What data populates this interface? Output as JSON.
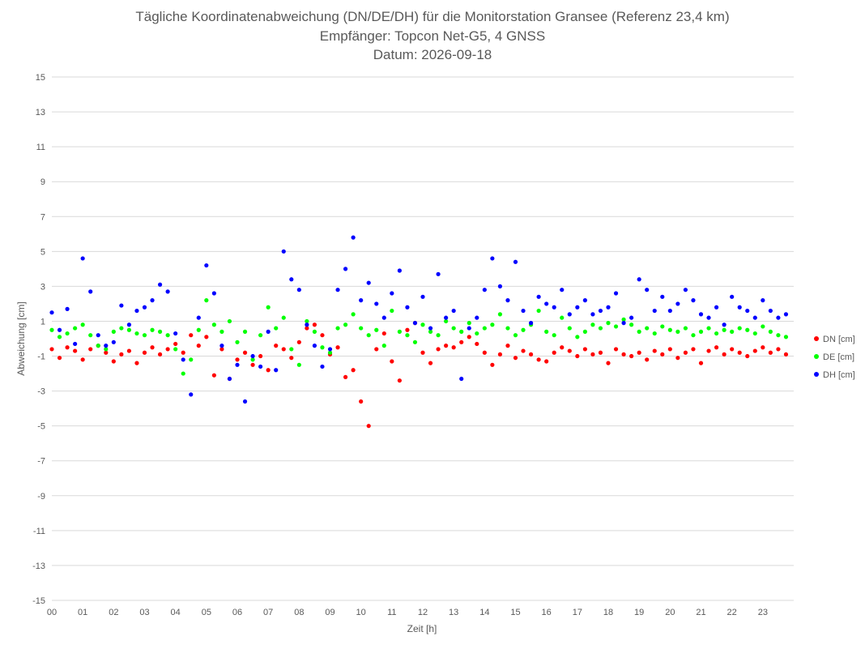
{
  "chart_data": {
    "type": "scatter",
    "title": "Tägliche Koordinatenabweichung (DN/DE/DH) für die Monitorstation Gransee (Referenz 23,4 km)",
    "subtitle": "Empfänger: Topcon Net-G5, 4 GNSS",
    "date_line": "Datum: 2026-09-18",
    "xlabel": "Zeit [h]",
    "ylabel": "Abweichung [cm]",
    "xlim": [
      0,
      24
    ],
    "ylim": [
      -15,
      15
    ],
    "x_ticks": [
      "00",
      "01",
      "02",
      "03",
      "04",
      "05",
      "06",
      "07",
      "08",
      "09",
      "10",
      "11",
      "12",
      "13",
      "14",
      "15",
      "16",
      "17",
      "18",
      "19",
      "20",
      "21",
      "22",
      "23"
    ],
    "y_ticks": [
      15,
      13,
      11,
      9,
      7,
      5,
      3,
      1,
      -1,
      -3,
      -5,
      -7,
      -9,
      -11,
      -13,
      -15
    ],
    "y_tick_labels": [
      "15",
      "13",
      "11",
      "9",
      "7",
      "5",
      "3",
      "1",
      "-1",
      "-3",
      "-5",
      "-7",
      "-9",
      "-11",
      "-13",
      "-15"
    ],
    "grid": "horizontal",
    "legend_position": "right",
    "series": [
      {
        "name": "DN [cm]",
        "color": "#ff0000",
        "x": [
          0.0,
          0.25,
          0.5,
          0.75,
          1.0,
          1.25,
          1.5,
          1.75,
          2.0,
          2.25,
          2.5,
          2.75,
          3.0,
          3.25,
          3.5,
          3.75,
          4.0,
          4.25,
          4.5,
          4.75,
          5.0,
          5.25,
          5.5,
          5.75,
          6.0,
          6.25,
          6.5,
          6.75,
          7.0,
          7.25,
          7.5,
          7.75,
          8.0,
          8.25,
          8.5,
          8.75,
          9.0,
          9.25,
          9.5,
          9.75,
          10.0,
          10.25,
          10.5,
          10.75,
          11.0,
          11.25,
          11.5,
          11.75,
          12.0,
          12.25,
          12.5,
          12.75,
          13.0,
          13.25,
          13.5,
          13.75,
          14.0,
          14.25,
          14.5,
          14.75,
          15.0,
          15.25,
          15.5,
          15.75,
          16.0,
          16.25,
          16.5,
          16.75,
          17.0,
          17.25,
          17.5,
          17.75,
          18.0,
          18.25,
          18.5,
          18.75,
          19.0,
          19.25,
          19.5,
          19.75,
          20.0,
          20.25,
          20.5,
          20.75,
          21.0,
          21.25,
          21.5,
          21.75,
          22.0,
          22.25,
          22.5,
          22.75,
          23.0,
          23.25,
          23.5,
          23.75
        ],
        "y": [
          -0.6,
          -1.1,
          -0.5,
          -0.7,
          -1.2,
          -0.6,
          -0.4,
          -0.8,
          -1.3,
          -0.9,
          -0.7,
          -1.4,
          -0.8,
          -0.5,
          -0.9,
          -0.6,
          -0.3,
          -0.8,
          0.2,
          -0.4,
          0.1,
          -2.1,
          -0.6,
          -2.3,
          -1.2,
          -0.8,
          -1.5,
          -1.0,
          -1.8,
          -0.4,
          -0.6,
          -1.1,
          -0.2,
          0.6,
          0.8,
          0.2,
          -0.9,
          -0.5,
          -2.2,
          -1.8,
          -3.6,
          -5.0,
          -0.6,
          0.3,
          -1.3,
          -2.4,
          0.5,
          0.9,
          -0.8,
          -1.4,
          -0.6,
          -0.4,
          -0.5,
          -0.2,
          0.1,
          -0.3,
          -0.8,
          -1.5,
          -0.9,
          -0.4,
          -1.1,
          -0.7,
          -0.9,
          -1.2,
          -1.3,
          -0.8,
          -0.5,
          -0.7,
          -1.0,
          -0.6,
          -0.9,
          -0.8,
          -1.4,
          -0.6,
          -0.9,
          -1.0,
          -0.8,
          -1.2,
          -0.7,
          -0.9,
          -0.6,
          -1.1,
          -0.8,
          -0.6,
          -1.4,
          -0.7,
          -0.5,
          -0.9,
          -0.6,
          -0.8,
          -1.0,
          -0.7,
          -0.5,
          -0.8,
          -0.6,
          -0.9
        ]
      },
      {
        "name": "DE [cm]",
        "color": "#00ff00",
        "x": [
          0.0,
          0.25,
          0.5,
          0.75,
          1.0,
          1.25,
          1.5,
          1.75,
          2.0,
          2.25,
          2.5,
          2.75,
          3.0,
          3.25,
          3.5,
          3.75,
          4.0,
          4.25,
          4.5,
          4.75,
          5.0,
          5.25,
          5.5,
          5.75,
          6.0,
          6.25,
          6.5,
          6.75,
          7.0,
          7.25,
          7.5,
          7.75,
          8.0,
          8.25,
          8.5,
          8.75,
          9.0,
          9.25,
          9.5,
          9.75,
          10.0,
          10.25,
          10.5,
          10.75,
          11.0,
          11.25,
          11.5,
          11.75,
          12.0,
          12.25,
          12.5,
          12.75,
          13.0,
          13.25,
          13.5,
          13.75,
          14.0,
          14.25,
          14.5,
          14.75,
          15.0,
          15.25,
          15.5,
          15.75,
          16.0,
          16.25,
          16.5,
          16.75,
          17.0,
          17.25,
          17.5,
          17.75,
          18.0,
          18.25,
          18.5,
          18.75,
          19.0,
          19.25,
          19.5,
          19.75,
          20.0,
          20.25,
          20.5,
          20.75,
          21.0,
          21.25,
          21.5,
          21.75,
          22.0,
          22.25,
          22.5,
          22.75,
          23.0,
          23.25,
          23.5,
          23.75
        ],
        "y": [
          0.5,
          0.1,
          0.3,
          0.6,
          0.8,
          0.2,
          -0.4,
          -0.6,
          0.4,
          0.6,
          0.5,
          0.3,
          0.2,
          0.5,
          0.4,
          0.2,
          -0.6,
          -2.0,
          -1.2,
          0.5,
          2.2,
          0.8,
          0.4,
          1.0,
          -0.2,
          0.4,
          -1.2,
          0.2,
          1.8,
          0.6,
          1.2,
          -0.6,
          -1.5,
          1.0,
          0.4,
          -0.5,
          -0.8,
          0.6,
          0.8,
          1.4,
          0.6,
          0.2,
          0.5,
          -0.4,
          1.6,
          0.4,
          0.2,
          -0.2,
          0.8,
          0.4,
          0.2,
          1.0,
          0.6,
          0.4,
          0.9,
          0.3,
          0.6,
          0.8,
          1.4,
          0.6,
          0.2,
          0.5,
          0.8,
          1.6,
          0.4,
          0.2,
          1.2,
          0.6,
          0.1,
          0.4,
          0.8,
          0.6,
          0.9,
          0.7,
          1.1,
          0.8,
          0.4,
          0.6,
          0.3,
          0.7,
          0.5,
          0.4,
          0.6,
          0.2,
          0.4,
          0.6,
          0.3,
          0.5,
          0.4,
          0.6,
          0.5,
          0.3,
          0.7,
          0.4,
          0.2,
          0.1
        ]
      },
      {
        "name": "DH [cm]",
        "color": "#0000ff",
        "x": [
          0.0,
          0.25,
          0.5,
          0.75,
          1.0,
          1.25,
          1.5,
          1.75,
          2.0,
          2.25,
          2.5,
          2.75,
          3.0,
          3.25,
          3.5,
          3.75,
          4.0,
          4.25,
          4.5,
          4.75,
          5.0,
          5.25,
          5.5,
          5.75,
          6.0,
          6.25,
          6.5,
          6.75,
          7.0,
          7.25,
          7.5,
          7.75,
          8.0,
          8.25,
          8.5,
          8.75,
          9.0,
          9.25,
          9.5,
          9.75,
          10.0,
          10.25,
          10.5,
          10.75,
          11.0,
          11.25,
          11.5,
          11.75,
          12.0,
          12.25,
          12.5,
          12.75,
          13.0,
          13.25,
          13.5,
          13.75,
          14.0,
          14.25,
          14.5,
          14.75,
          15.0,
          15.25,
          15.5,
          15.75,
          16.0,
          16.25,
          16.5,
          16.75,
          17.0,
          17.25,
          17.5,
          17.75,
          18.0,
          18.25,
          18.5,
          18.75,
          19.0,
          19.25,
          19.5,
          19.75,
          20.0,
          20.25,
          20.5,
          20.75,
          21.0,
          21.25,
          21.5,
          21.75,
          22.0,
          22.25,
          22.5,
          22.75,
          23.0,
          23.25,
          23.5,
          23.75
        ],
        "y": [
          1.5,
          0.5,
          1.7,
          -0.3,
          4.6,
          2.7,
          0.2,
          -0.4,
          -0.2,
          1.9,
          0.8,
          1.6,
          1.8,
          2.2,
          3.1,
          2.7,
          0.3,
          -1.2,
          -3.2,
          1.2,
          4.2,
          2.6,
          -0.4,
          -2.3,
          -1.5,
          -3.6,
          -1.0,
          -1.6,
          0.4,
          -1.8,
          5.0,
          3.4,
          2.8,
          0.8,
          -0.4,
          -1.6,
          -0.6,
          2.8,
          4.0,
          5.8,
          2.2,
          3.2,
          2.0,
          1.2,
          2.6,
          3.9,
          1.8,
          0.9,
          2.4,
          0.6,
          3.7,
          1.2,
          1.6,
          -2.3,
          0.6,
          1.2,
          2.8,
          4.6,
          3.0,
          2.2,
          4.4,
          1.6,
          0.9,
          2.4,
          2.0,
          1.8,
          2.8,
          1.4,
          1.8,
          2.2,
          1.4,
          1.6,
          1.8,
          2.6,
          0.9,
          1.2,
          3.4,
          2.8,
          1.6,
          2.4,
          1.6,
          2.0,
          2.8,
          2.2,
          1.4,
          1.2,
          1.8,
          0.8,
          2.4,
          1.8,
          1.6,
          1.2,
          2.2,
          1.6,
          1.2,
          1.4
        ]
      }
    ]
  }
}
